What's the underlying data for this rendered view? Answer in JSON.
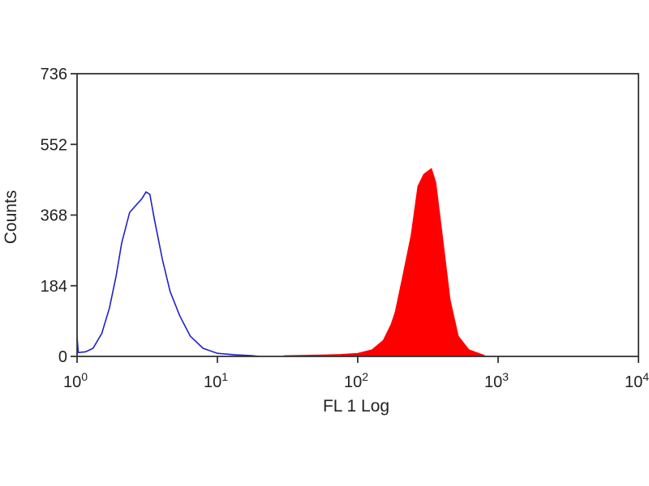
{
  "chart_data": {
    "type": "area",
    "title": "",
    "xlabel": "FL 1 Log",
    "ylabel": "Counts",
    "xscale": "log",
    "xlim": [
      1,
      10000
    ],
    "ylim": [
      0,
      736
    ],
    "xticks": [
      {
        "value": 1,
        "base": "10",
        "exp": "0"
      },
      {
        "value": 10,
        "base": "10",
        "exp": "1"
      },
      {
        "value": 100,
        "base": "10",
        "exp": "2"
      },
      {
        "value": 1000,
        "base": "10",
        "exp": "3"
      },
      {
        "value": 10000,
        "base": "10",
        "exp": "4"
      }
    ],
    "yticks": [
      {
        "value": 0,
        "label": "0"
      },
      {
        "value": 184,
        "label": "184"
      },
      {
        "value": 368,
        "label": "368"
      },
      {
        "value": 552,
        "label": "552"
      },
      {
        "value": 736,
        "label": "736"
      }
    ],
    "grid": false,
    "series": [
      {
        "style": "outline",
        "color": "#2020c8",
        "points": [
          [
            1.0,
            50
          ],
          [
            1.02,
            10
          ],
          [
            1.15,
            12
          ],
          [
            1.3,
            21
          ],
          [
            1.5,
            60
          ],
          [
            1.7,
            126
          ],
          [
            1.9,
            210
          ],
          [
            2.08,
            295
          ],
          [
            2.37,
            375
          ],
          [
            2.9,
            411
          ],
          [
            3.1,
            428
          ],
          [
            3.3,
            422
          ],
          [
            3.55,
            358
          ],
          [
            4.05,
            253
          ],
          [
            4.6,
            169
          ],
          [
            5.4,
            105
          ],
          [
            6.4,
            53
          ],
          [
            7.9,
            21
          ],
          [
            10,
            8
          ],
          [
            13.4,
            4
          ],
          [
            17.5,
            2
          ],
          [
            20,
            0
          ]
        ]
      },
      {
        "style": "filled",
        "color": "#ff0000",
        "points": [
          [
            30,
            0
          ],
          [
            30,
            2
          ],
          [
            60,
            4
          ],
          [
            75,
            5
          ],
          [
            100,
            8
          ],
          [
            126,
            17
          ],
          [
            152,
            42
          ],
          [
            173,
            84
          ],
          [
            185,
            116
          ],
          [
            210,
            211
          ],
          [
            240,
            316
          ],
          [
            268,
            443
          ],
          [
            295,
            474
          ],
          [
            335,
            489
          ],
          [
            360,
            453
          ],
          [
            400,
            316
          ],
          [
            455,
            148
          ],
          [
            520,
            53
          ],
          [
            620,
            17
          ],
          [
            780,
            4
          ],
          [
            820,
            0
          ]
        ]
      }
    ]
  }
}
